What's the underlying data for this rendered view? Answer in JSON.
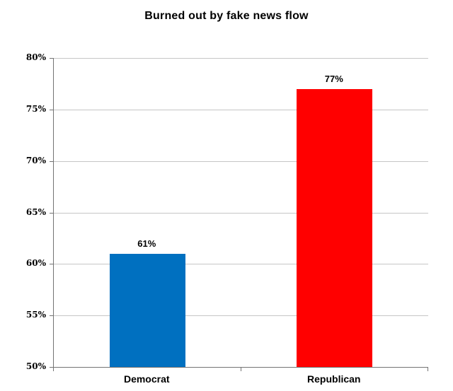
{
  "chart_data": {
    "type": "bar",
    "title": "Burned out by fake news flow",
    "categories": [
      "Democrat",
      "Republican"
    ],
    "values": [
      61,
      77
    ],
    "value_labels": [
      "61%",
      "77%"
    ],
    "bar_colors": [
      "#0070C0",
      "#FF0000"
    ],
    "ylim": [
      50,
      80
    ],
    "ytick_step": 5,
    "ytick_labels": [
      "80%",
      "75%",
      "70%",
      "65%",
      "60%",
      "55%",
      "50%"
    ],
    "xlabel": "",
    "ylabel": "",
    "grid": true,
    "legend": false,
    "colors": {
      "gridline": "#C6C6C6",
      "axis": "#737373",
      "text": "#000000",
      "background": "#FFFFFF"
    }
  }
}
